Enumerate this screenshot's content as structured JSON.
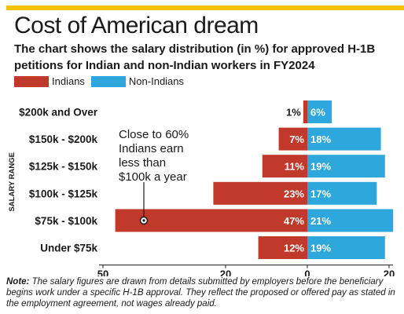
{
  "header": {
    "title": "Cost of American dream",
    "subtitle": "The chart shows the salary distribution (in %) for approved H-1B petitions for Indian and non-Indian workers in FY2024"
  },
  "legend": {
    "indians": "Indians",
    "non_indians": "Non-Indians"
  },
  "colors": {
    "indians": "#c0392b",
    "non_indians": "#2ea8dc",
    "accent_bar": "#f2c200"
  },
  "chart_data": {
    "type": "bar",
    "orientation": "horizontal-diverging",
    "categories": [
      "$200k and Over",
      "$150k - $200k",
      "$125k - $150k",
      "$100k - $125k",
      "$75k - $100k",
      "Under $75k"
    ],
    "series": [
      {
        "name": "Indians",
        "values": [
          1,
          7,
          11,
          23,
          47,
          12
        ],
        "labels": [
          "1%",
          "7%",
          "11%",
          "23%",
          "47%",
          "12%"
        ]
      },
      {
        "name": "Non-Indians",
        "values": [
          6,
          18,
          19,
          17,
          21,
          19
        ],
        "labels": [
          "6%",
          "18%",
          "19%",
          "17%",
          "21%",
          "19%"
        ]
      }
    ],
    "ylabel": "SALARY RANGE",
    "xticks": [
      {
        "value": -50,
        "label": "50"
      },
      {
        "value": -20,
        "label": "20"
      },
      {
        "value": 0,
        "label": "0"
      },
      {
        "value": 20,
        "label": "20"
      }
    ],
    "xlim": [
      -48,
      20
    ],
    "annotation": {
      "lines": [
        "Close to 60%",
        "Indians earn",
        "less than",
        "$100k a year"
      ],
      "target_category": "$75k - $100k"
    },
    "legend_position": "top-left",
    "grid": false
  },
  "footer": {
    "note_label": "Note:",
    "note_text": " The salary figures are drawn from details submitted by employers before the beneficiary begins work under a specific H-1B approval. They reflect the proposed or offered pay as stated in the employment agreement, not wages already paid."
  }
}
